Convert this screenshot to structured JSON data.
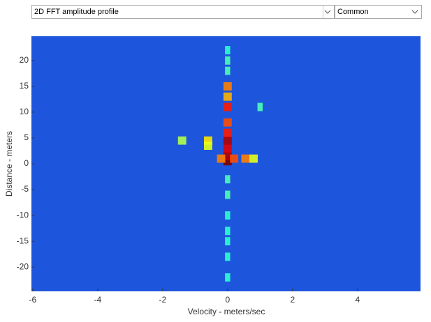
{
  "dropdowns": [
    {
      "label": "2D FFT amplitude profile"
    },
    {
      "label": "Common"
    }
  ],
  "chart_data": {
    "type": "heatmap",
    "xlabel": "Velocity - meters/sec",
    "ylabel": "Distance - meters",
    "xlim": [
      -6.04,
      5.94
    ],
    "ylim": [
      -24.7,
      24.7
    ],
    "xticks": [
      -6,
      -4,
      -2,
      0,
      2,
      4
    ],
    "yticks": [
      -20,
      -15,
      -10,
      -5,
      0,
      5,
      10,
      15,
      20
    ],
    "background_color": "#1d55dc",
    "colormap": "jet",
    "points": {
      "x": [
        0,
        0,
        0,
        0,
        0,
        0,
        0,
        0,
        0,
        0.2,
        0.55,
        -0.2,
        -0.6,
        -0.6,
        -1.4,
        0.8,
        0,
        0,
        1,
        0,
        0,
        0,
        0,
        0,
        0,
        0,
        0
      ],
      "y": [
        0.5,
        1.5,
        3,
        4.5,
        6,
        8,
        11,
        15,
        13,
        1,
        1,
        1,
        4.5,
        3.5,
        4.5,
        1,
        -3,
        20,
        11,
        -22,
        -15,
        -10,
        -6,
        18,
        22,
        -18,
        -13
      ],
      "values": [
        1.0,
        0.95,
        0.9,
        0.95,
        0.85,
        0.8,
        0.85,
        0.75,
        0.7,
        0.8,
        0.75,
        0.75,
        0.65,
        0.6,
        0.55,
        0.6,
        0.45,
        0.45,
        0.45,
        0.42,
        0.42,
        0.42,
        0.45,
        0.45,
        0.42,
        0.42,
        0.42
      ]
    }
  }
}
